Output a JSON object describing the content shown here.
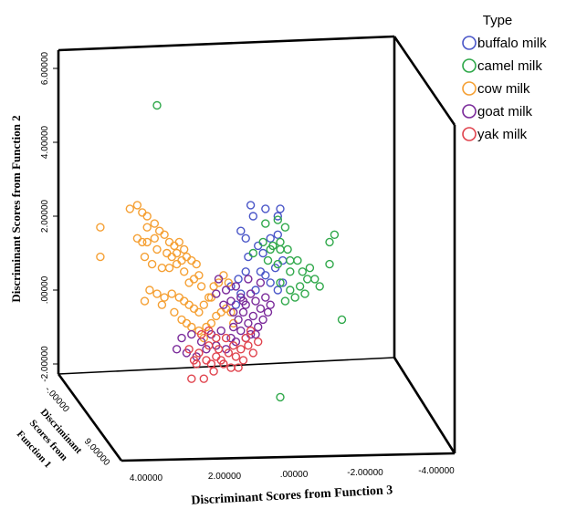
{
  "chart_data": {
    "type": "scatter",
    "projection": "3d",
    "legend_title": "Type",
    "legend_placement": "top-right",
    "axes": {
      "y": {
        "label": "Discriminant Scores from Function 2",
        "ticks": [
          "6.00000",
          "4.00000",
          "2.00000",
          ".00000",
          "-2.00000"
        ]
      },
      "x": {
        "label": "Discriminant Scores from Function 3",
        "ticks": [
          "4.00000",
          "2.00000",
          ".00000",
          "-2.00000",
          "-4.00000"
        ]
      },
      "z": {
        "label_lines": [
          "Discriminant",
          "Scores from",
          "Function 1"
        ],
        "ticks": [
          "-.00000",
          "9.00000"
        ]
      }
    },
    "grid": false,
    "series": [
      {
        "name": "buffalo milk",
        "color": "#4a56c8",
        "points": [
          [
            -0.4,
            2.2
          ],
          [
            -1.0,
            2.2
          ],
          [
            -0.9,
            2.0
          ],
          [
            0.2,
            2.3
          ],
          [
            0.6,
            1.6
          ],
          [
            0.4,
            1.4
          ],
          [
            0.1,
            2.0
          ],
          [
            -0.6,
            1.4
          ],
          [
            -0.9,
            1.5
          ],
          [
            -0.1,
            1.2
          ],
          [
            0.3,
            0.9
          ],
          [
            -0.3,
            1.0
          ],
          [
            -1.1,
            0.8
          ],
          [
            -0.8,
            0.6
          ],
          [
            -0.2,
            0.5
          ],
          [
            0.4,
            0.5
          ],
          [
            0.7,
            0.3
          ],
          [
            -0.6,
            0.2
          ],
          [
            -1.1,
            0.2
          ],
          [
            0.0,
            0.0
          ],
          [
            0.6,
            -0.1
          ],
          [
            -0.4,
            0.4
          ],
          [
            1.0,
            0.1
          ],
          [
            0.8,
            -0.4
          ],
          [
            -0.9,
            0.0
          ]
        ]
      },
      {
        "name": "camel milk",
        "color": "#2fa84a",
        "points": [
          [
            4.0,
            5.0
          ],
          [
            -1.0,
            -2.9
          ],
          [
            -3.2,
            1.5
          ],
          [
            -3.0,
            1.3
          ],
          [
            -3.0,
            0.7
          ],
          [
            -3.5,
            -0.8
          ],
          [
            -2.2,
            0.6
          ],
          [
            -1.9,
            0.5
          ],
          [
            -2.1,
            0.3
          ],
          [
            -2.4,
            0.3
          ],
          [
            -2.6,
            0.1
          ],
          [
            -1.8,
            0.1
          ],
          [
            -1.7,
            0.8
          ],
          [
            -0.9,
            1.9
          ],
          [
            -1.2,
            1.7
          ],
          [
            -0.4,
            1.8
          ],
          [
            -0.6,
            1.1
          ],
          [
            -0.7,
            1.2
          ],
          [
            -1.0,
            1.1
          ],
          [
            -1.3,
            1.1
          ],
          [
            -1.4,
            0.8
          ],
          [
            -0.9,
            0.7
          ],
          [
            -0.5,
            0.8
          ],
          [
            -1.4,
            0.5
          ],
          [
            -1.0,
            0.2
          ],
          [
            -1.2,
            -0.3
          ],
          [
            -1.6,
            -0.2
          ],
          [
            -2.0,
            -0.1
          ],
          [
            -1.4,
            0.0
          ],
          [
            0.1,
            1.0
          ],
          [
            -0.3,
            1.3
          ],
          [
            -1.0,
            1.3
          ]
        ]
      },
      {
        "name": "cow milk",
        "color": "#f5a034",
        "points": [
          [
            6.3,
            1.7
          ],
          [
            6.3,
            0.9
          ],
          [
            5.1,
            2.2
          ],
          [
            4.8,
            2.3
          ],
          [
            4.4,
            2.0
          ],
          [
            4.6,
            2.1
          ],
          [
            4.4,
            1.7
          ],
          [
            4.1,
            1.8
          ],
          [
            4.8,
            1.4
          ],
          [
            4.6,
            1.3
          ],
          [
            4.4,
            1.3
          ],
          [
            4.1,
            1.4
          ],
          [
            3.9,
            1.6
          ],
          [
            3.7,
            1.5
          ],
          [
            3.5,
            1.3
          ],
          [
            3.3,
            1.2
          ],
          [
            3.1,
            1.3
          ],
          [
            4.0,
            1.1
          ],
          [
            3.6,
            1.0
          ],
          [
            3.4,
            0.9
          ],
          [
            3.2,
            1.0
          ],
          [
            2.9,
            1.1
          ],
          [
            4.5,
            0.9
          ],
          [
            4.2,
            0.7
          ],
          [
            3.8,
            0.6
          ],
          [
            3.5,
            0.6
          ],
          [
            3.2,
            0.7
          ],
          [
            3.0,
            0.8
          ],
          [
            2.8,
            0.9
          ],
          [
            2.6,
            0.8
          ],
          [
            2.4,
            0.7
          ],
          [
            2.3,
            0.4
          ],
          [
            2.5,
            0.3
          ],
          [
            2.7,
            0.2
          ],
          [
            2.9,
            0.5
          ],
          [
            4.3,
            0.0
          ],
          [
            4.0,
            -0.1
          ],
          [
            3.7,
            -0.2
          ],
          [
            3.4,
            -0.1
          ],
          [
            3.1,
            -0.2
          ],
          [
            2.9,
            -0.3
          ],
          [
            2.7,
            -0.4
          ],
          [
            2.5,
            -0.5
          ],
          [
            2.3,
            -0.6
          ],
          [
            2.1,
            -0.4
          ],
          [
            1.9,
            -0.2
          ],
          [
            1.7,
            0.1
          ],
          [
            1.5,
            0.2
          ],
          [
            1.3,
            0.4
          ],
          [
            1.1,
            0.2
          ],
          [
            3.3,
            -0.6
          ],
          [
            3.0,
            -0.8
          ],
          [
            2.8,
            -0.9
          ],
          [
            2.6,
            -1.0
          ],
          [
            2.3,
            -1.1
          ],
          [
            2.0,
            -1.0
          ],
          [
            1.8,
            -0.9
          ],
          [
            1.6,
            -0.7
          ],
          [
            1.4,
            -0.6
          ],
          [
            1.2,
            -0.5
          ],
          [
            1.0,
            -0.6
          ],
          [
            0.9,
            -0.9
          ],
          [
            2.1,
            -1.3
          ],
          [
            1.6,
            -1.5
          ],
          [
            1.8,
            -0.2
          ],
          [
            2.2,
            0.1
          ],
          [
            3.8,
            -0.4
          ],
          [
            4.5,
            -0.3
          ]
        ]
      },
      {
        "name": "goat milk",
        "color": "#7a2a9a",
        "points": [
          [
            1.5,
            0.3
          ],
          [
            1.2,
            0.0
          ],
          [
            1.0,
            -0.3
          ],
          [
            0.8,
            0.1
          ],
          [
            0.6,
            -0.2
          ],
          [
            0.4,
            -0.4
          ],
          [
            0.2,
            -0.1
          ],
          [
            0.0,
            -0.3
          ],
          [
            -0.2,
            -0.5
          ],
          [
            -0.4,
            -0.2
          ],
          [
            -0.6,
            -0.4
          ],
          [
            0.9,
            -0.6
          ],
          [
            0.7,
            -0.8
          ],
          [
            0.5,
            -0.6
          ],
          [
            0.3,
            -0.9
          ],
          [
            0.1,
            -0.7
          ],
          [
            -0.1,
            -1.0
          ],
          [
            0.2,
            -1.2
          ],
          [
            0.6,
            -1.1
          ],
          [
            1.0,
            -1.3
          ],
          [
            1.4,
            -1.1
          ],
          [
            1.8,
            -1.2
          ],
          [
            2.2,
            -1.4
          ],
          [
            2.6,
            -1.2
          ],
          [
            3.0,
            -1.3
          ],
          [
            3.2,
            -1.6
          ],
          [
            2.8,
            -1.7
          ],
          [
            2.4,
            -1.8
          ],
          [
            2.0,
            -1.6
          ],
          [
            1.6,
            -1.5
          ],
          [
            1.2,
            -1.6
          ],
          [
            0.8,
            -1.4
          ],
          [
            0.4,
            -1.3
          ],
          [
            0.0,
            -1.2
          ],
          [
            -0.3,
            -0.8
          ],
          [
            -0.5,
            -0.6
          ],
          [
            1.3,
            -0.4
          ],
          [
            1.6,
            -0.1
          ],
          [
            0.3,
            0.3
          ],
          [
            -0.2,
            0.2
          ],
          [
            0.5,
            -0.3
          ],
          [
            0.9,
            -1.0
          ]
        ]
      },
      {
        "name": "yak milk",
        "color": "#e0444e",
        "points": [
          [
            2.6,
            -2.4
          ],
          [
            2.1,
            -2.4
          ],
          [
            1.7,
            -2.2
          ],
          [
            2.4,
            -2.0
          ],
          [
            2.0,
            -1.9
          ],
          [
            1.6,
            -1.8
          ],
          [
            1.3,
            -2.0
          ],
          [
            1.1,
            -1.7
          ],
          [
            0.8,
            -1.8
          ],
          [
            0.6,
            -1.6
          ],
          [
            0.3,
            -1.5
          ],
          [
            0.1,
            -1.7
          ],
          [
            1.9,
            -1.5
          ],
          [
            1.5,
            -1.6
          ],
          [
            1.2,
            -1.3
          ],
          [
            0.9,
            -1.5
          ],
          [
            0.5,
            -1.9
          ],
          [
            0.4,
            -1.3
          ],
          [
            -0.1,
            -1.4
          ],
          [
            2.3,
            -1.7
          ],
          [
            2.7,
            -1.6
          ],
          [
            1.0,
            -2.1
          ],
          [
            1.8,
            -2.0
          ],
          [
            2.2,
            -1.2
          ],
          [
            1.4,
            -1.9
          ],
          [
            0.7,
            -2.1
          ],
          [
            2.5,
            -1.9
          ],
          [
            1.6,
            -1.3
          ],
          [
            0.2,
            -1.1
          ],
          [
            1.9,
            -1.1
          ]
        ]
      }
    ]
  }
}
